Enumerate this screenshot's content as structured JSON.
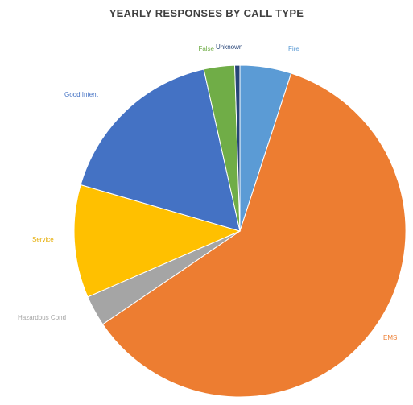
{
  "chart_data": {
    "type": "pie",
    "title": "YEARLY RESPONSES BY CALL TYPE",
    "slices": [
      {
        "name": "Fire",
        "value": 5.0,
        "color": "#5B9BD5"
      },
      {
        "name": "EMS",
        "value": 60.5,
        "color": "#ED7D31"
      },
      {
        "name": "Hazardous Cond",
        "value": 3.0,
        "color": "#A5A5A5"
      },
      {
        "name": "Service",
        "value": 11.0,
        "color": "#FFC000"
      },
      {
        "name": "Good Intent",
        "value": 17.0,
        "color": "#4472C4"
      },
      {
        "name": "False",
        "value": 3.0,
        "color": "#70AD47"
      },
      {
        "name": "Unknown",
        "value": 0.5,
        "color": "#264478"
      }
    ],
    "legend": "none",
    "start_angle_deg": 0,
    "direction": "clockwise"
  }
}
